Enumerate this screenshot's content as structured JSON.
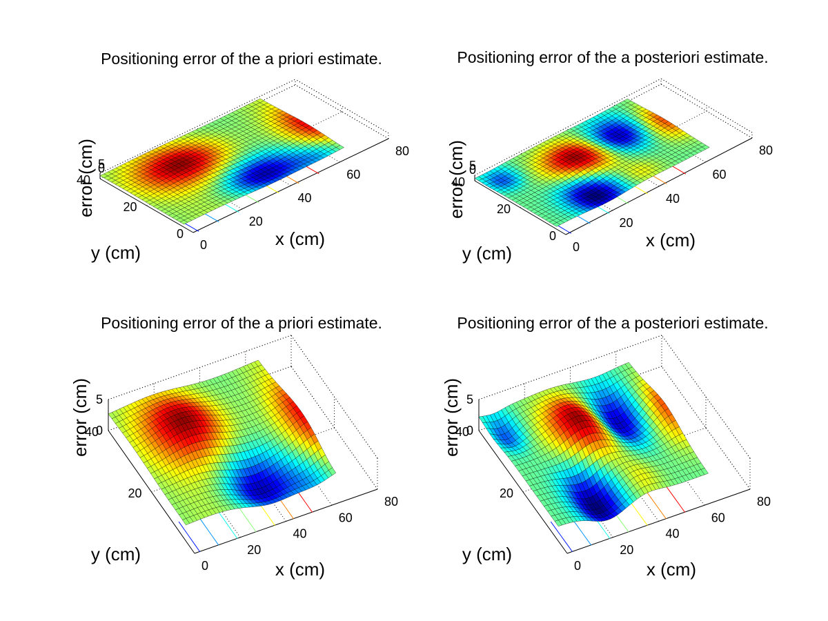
{
  "figure": {
    "background": "#ffffff",
    "colormap": "jet"
  },
  "chart_data": [
    {
      "type": "surface",
      "title": "Positioning error of the a priori estimate.",
      "xlabel": "x (cm)",
      "ylabel": "y (cm)",
      "zlabel": "error (cm)",
      "xlim": [
        0,
        80
      ],
      "ylim": [
        0,
        40
      ],
      "zlim": [
        0,
        5
      ],
      "xticks": [
        "0",
        "20",
        "40",
        "60",
        "80"
      ],
      "yticks": [
        "0",
        "20",
        "40"
      ],
      "zticks": [
        "0",
        "5"
      ],
      "grid": true,
      "view": "flat-elevated",
      "surface": "a-priori",
      "contours": true
    },
    {
      "type": "surface",
      "title": "Positioning error of the a posteriori estimate.",
      "xlabel": "x (cm)",
      "ylabel": "y (cm)",
      "zlabel": "error (cm)",
      "xlim": [
        0,
        80
      ],
      "ylim": [
        0,
        40
      ],
      "zlim": [
        0,
        5
      ],
      "xticks": [
        "0",
        "20",
        "40",
        "60",
        "80"
      ],
      "yticks": [
        "0",
        "20",
        "40"
      ],
      "zticks": [
        "0",
        "5"
      ],
      "grid": true,
      "view": "flat-elevated",
      "surface": "a-posteriori",
      "contours": true
    },
    {
      "type": "surface",
      "title": "Positioning error of the a priori estimate.",
      "xlabel": "x (cm)",
      "ylabel": "y (cm)",
      "zlabel": "error (cm)",
      "xlim": [
        0,
        80
      ],
      "ylim": [
        0,
        40
      ],
      "zlim": [
        0,
        5
      ],
      "xticks": [
        "0",
        "20",
        "40",
        "60",
        "80"
      ],
      "yticks": [
        "20",
        "40"
      ],
      "zticks": [
        "0",
        "5"
      ],
      "grid": true,
      "view": "tall-elevated",
      "surface": "a-priori",
      "contours": true
    },
    {
      "type": "surface",
      "title": "Positioning error of the a posteriori estimate.",
      "xlabel": "x (cm)",
      "ylabel": "y (cm)",
      "zlabel": "error (cm)",
      "xlim": [
        0,
        80
      ],
      "ylim": [
        0,
        40
      ],
      "zlim": [
        0,
        5
      ],
      "xticks": [
        "0",
        "20",
        "40",
        "60",
        "80"
      ],
      "yticks": [
        "20",
        "40"
      ],
      "zticks": [
        "0",
        "5"
      ],
      "grid": true,
      "view": "tall-elevated",
      "surface": "a-posteriori",
      "contours": true
    }
  ]
}
